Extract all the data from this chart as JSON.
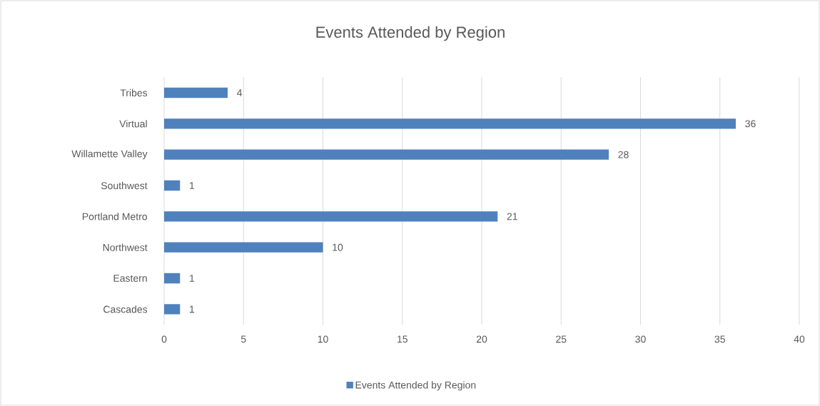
{
  "chart_data": {
    "type": "bar",
    "orientation": "horizontal",
    "title": "Events Attended by Region",
    "categories": [
      "Tribes",
      "Virtual",
      "Willamette Valley",
      "Southwest",
      "Portland Metro",
      "Northwest",
      "Eastern",
      "Cascades"
    ],
    "series": [
      {
        "name": "Events Attended by Region",
        "color": "#4f81bd",
        "values": [
          4,
          36,
          28,
          1,
          21,
          10,
          1,
          1
        ]
      }
    ],
    "xlim": [
      0,
      40
    ],
    "xticks": [
      0,
      5,
      10,
      15,
      20,
      25,
      30,
      35,
      40
    ],
    "grid": "x",
    "legend": "bottom",
    "data_labels": true
  }
}
